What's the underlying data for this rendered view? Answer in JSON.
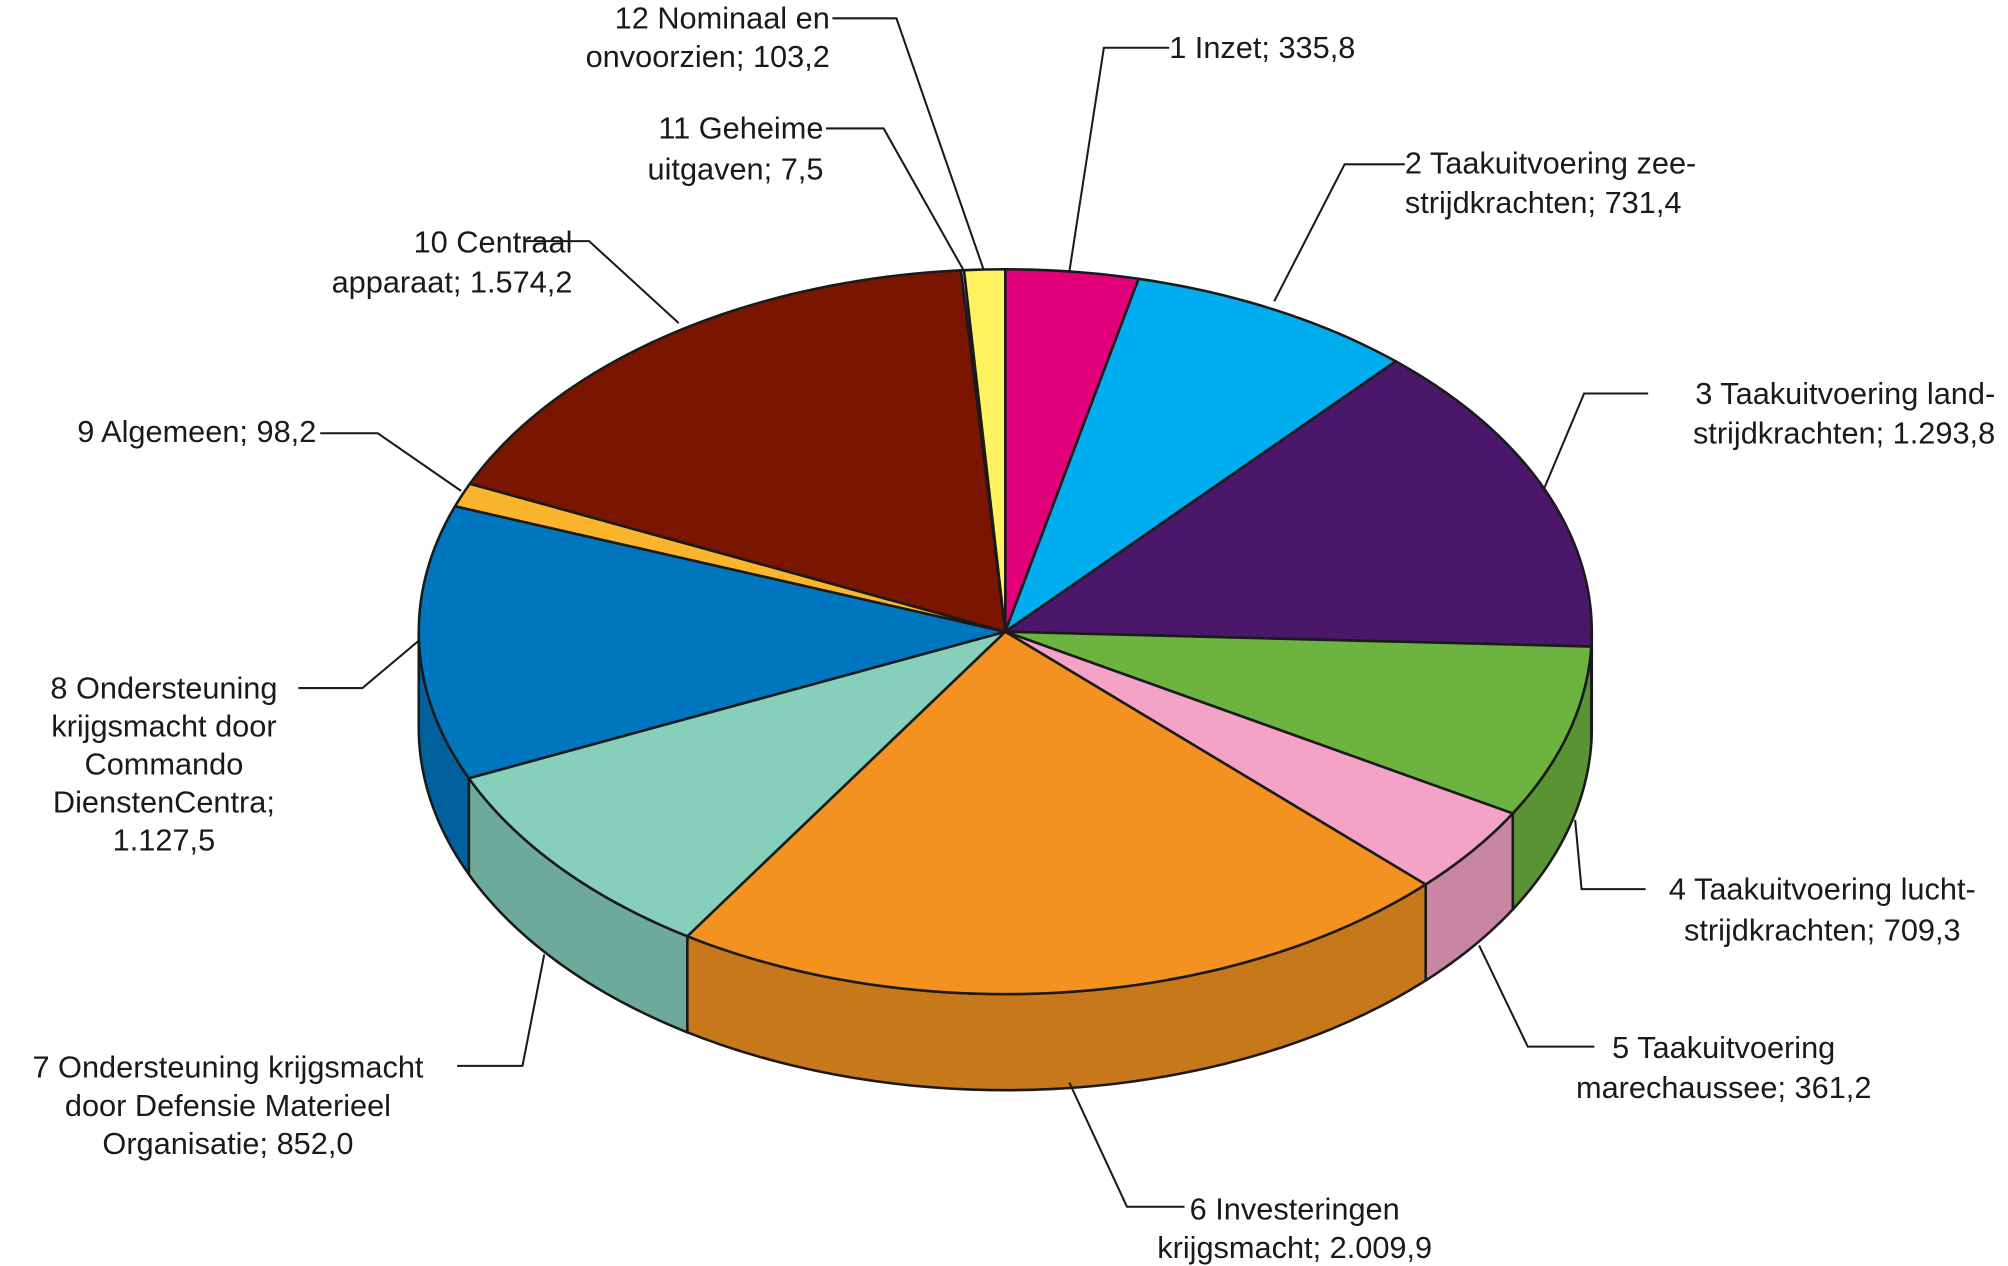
{
  "chart_data": {
    "type": "pie",
    "style": "3d",
    "title": "",
    "start": "12 o'clock, clockwise",
    "slices": [
      {
        "label": [
          "1 Inzet; 335,8"
        ],
        "value": 335.8,
        "color": "#e2007a"
      },
      {
        "label": [
          "2 Taakuitvoering zee-",
          "strijdkrachten; 731,4"
        ],
        "value": 731.4,
        "color": "#00adef"
      },
      {
        "label": [
          "3 Taakuitvoering land-",
          "strijdkrachten; 1.293,8"
        ],
        "value": 1293.8,
        "color": "#4a176b"
      },
      {
        "label": [
          "4 Taakuitvoering lucht-",
          "strijdkrachten; 709,3"
        ],
        "value": 709.3,
        "color": "#6cb33f"
      },
      {
        "label": [
          "5 Taakuitvoering",
          "marechaussee; 361,2"
        ],
        "value": 361.2,
        "color": "#f4a3c6"
      },
      {
        "label": [
          "6 Investeringen",
          "krijgsmacht; 2.009,9"
        ],
        "value": 2009.9,
        "color": "#f39220"
      },
      {
        "label": [
          "7 Ondersteuning krijgsmacht",
          "door Defensie Materieel",
          "Organisatie; 852,0"
        ],
        "value": 852.0,
        "color": "#86cfbb"
      },
      {
        "label": [
          "8 Ondersteuning",
          "krijgsmacht door",
          "Commando",
          "DienstenCentra;",
          "1.127,5"
        ],
        "value": 1127.5,
        "color": "#0076bf"
      },
      {
        "label": [
          "9 Algemeen; 98,2"
        ],
        "value": 98.2,
        "color": "#fbb52c"
      },
      {
        "label": [
          "10 Centraal",
          "apparaat; 1.574,2"
        ],
        "value": 1574.2,
        "color": "#7a1500"
      },
      {
        "label": [
          "11 Geheime",
          "uitgaven; 7,5"
        ],
        "value": 7.5,
        "color": "#ffffff"
      },
      {
        "label": [
          "12 Nominaal en",
          "onvoorzien; 103,2"
        ],
        "value": 103.2,
        "color": "#fff25f"
      }
    ]
  }
}
